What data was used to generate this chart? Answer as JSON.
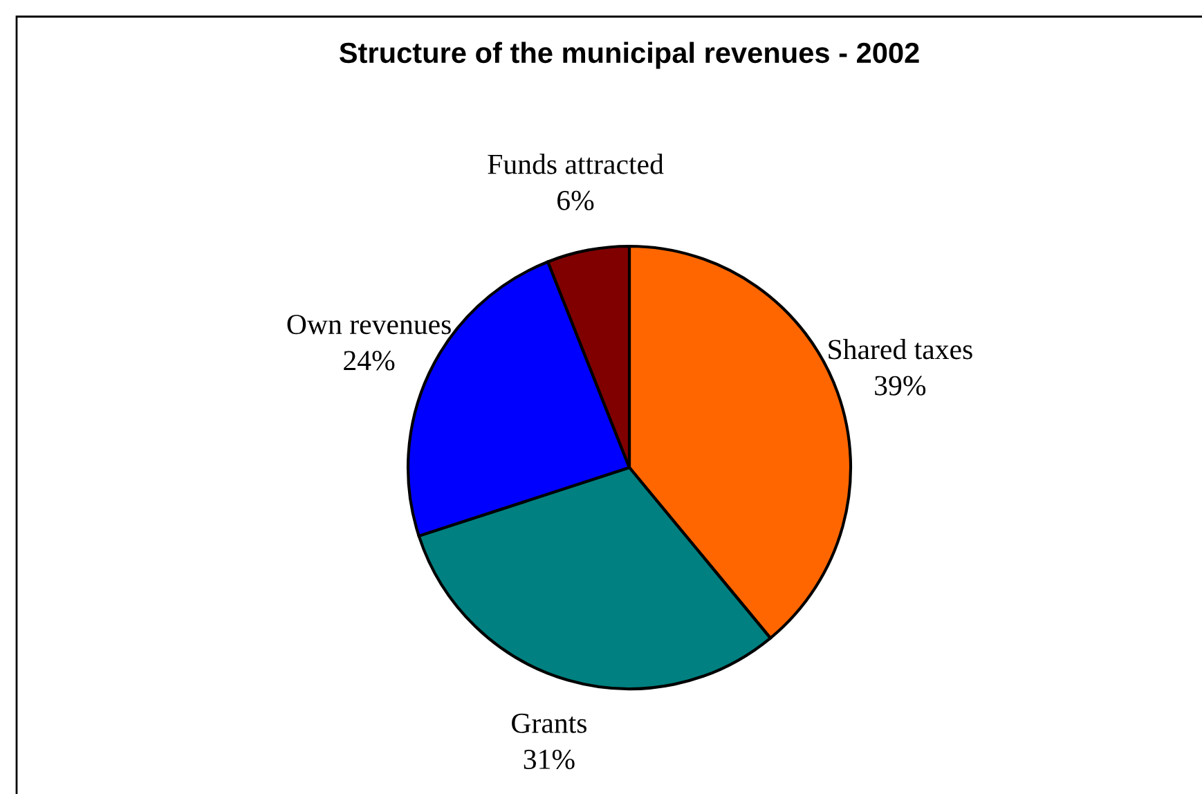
{
  "chart_data": {
    "type": "pie",
    "title": "Structure of the municipal revenues - 2002",
    "categories": [
      "Shared taxes",
      "Grants",
      "Own revenues",
      "Funds attracted"
    ],
    "values": [
      39,
      31,
      24,
      6
    ],
    "colors": [
      "#ff6600",
      "#008080",
      "#0000ff",
      "#800000"
    ],
    "value_labels": [
      "39%",
      "31%",
      "24%",
      "6%"
    ],
    "legend": false
  }
}
